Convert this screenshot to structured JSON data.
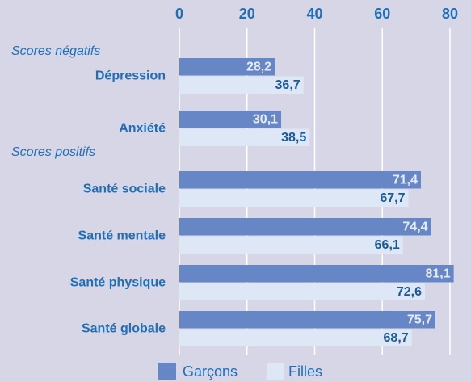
{
  "chart_data": {
    "type": "bar",
    "orientation": "horizontal",
    "group_labels": [
      "Scores négatifs",
      "Scores positifs"
    ],
    "categories": [
      "Dépression",
      "Anxiété",
      "Santé sociale",
      "Santé mentale",
      "Santé physique",
      "Santé globale"
    ],
    "series": [
      {
        "name": "Garçons",
        "color": "#6786c6",
        "values": [
          28.2,
          30.1,
          71.4,
          74.4,
          81.1,
          75.7
        ],
        "value_labels": [
          "28,2",
          "30,1",
          "71,4",
          "74,4",
          "81,1",
          "75,7"
        ]
      },
      {
        "name": "Filles",
        "color": "#dde7f6",
        "values": [
          36.7,
          38.5,
          67.7,
          66.1,
          72.6,
          68.7
        ],
        "value_labels": [
          "36,7",
          "38,5",
          "67,7",
          "66,1",
          "72,6",
          "68,7"
        ]
      }
    ],
    "xlim": [
      0,
      80
    ],
    "xticks": [
      0,
      20,
      40,
      60,
      80
    ],
    "grid": true
  }
}
